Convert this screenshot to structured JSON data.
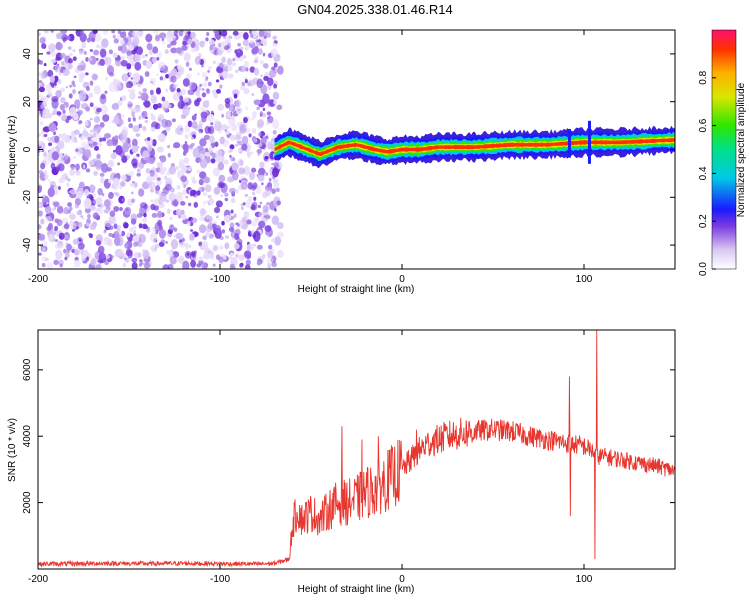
{
  "title": "GN04.2025.338.01.46.R14",
  "chart_data": [
    {
      "type": "heatmap",
      "name": "spectrogram",
      "xlabel": "Height of straight line (km)",
      "ylabel": "Frequency (Hz)",
      "xlim": [
        -200,
        150
      ],
      "ylim": [
        -50,
        50
      ],
      "xticks": [
        -200,
        -100,
        0,
        100
      ],
      "yticks": [
        -40,
        -20,
        0,
        20,
        40
      ],
      "noise_region_x": [
        -200,
        -70
      ],
      "ridge_frequency_hz": [
        {
          "x": -70,
          "f": 0
        },
        {
          "x": -62,
          "f": 3
        },
        {
          "x": -55,
          "f": 1
        },
        {
          "x": -45,
          "f": -2
        },
        {
          "x": -35,
          "f": 1
        },
        {
          "x": -25,
          "f": 2
        },
        {
          "x": -15,
          "f": 0
        },
        {
          "x": -8,
          "f": -1
        },
        {
          "x": 0,
          "f": 0
        },
        {
          "x": 10,
          "f": 0
        },
        {
          "x": 20,
          "f": 1
        },
        {
          "x": 40,
          "f": 1
        },
        {
          "x": 60,
          "f": 2
        },
        {
          "x": 80,
          "f": 2
        },
        {
          "x": 100,
          "f": 3
        },
        {
          "x": 120,
          "f": 3
        },
        {
          "x": 150,
          "f": 4
        }
      ],
      "colorbar": {
        "label": "Normalized spectral amplitude",
        "min": 0.0,
        "max": 1.0,
        "ticks": [
          "0.0",
          "0.2",
          "0.4",
          "0.6",
          "0.8"
        ]
      }
    },
    {
      "type": "line",
      "name": "snr",
      "xlabel": "Height of straight line (km)",
      "ylabel": "SNR (10 * v/v)",
      "xlim": [
        -200,
        150
      ],
      "ylim": [
        0,
        7200
      ],
      "xticks": [
        -200,
        -100,
        0,
        100
      ],
      "yticks": [
        2000,
        4000,
        6000
      ],
      "series": [
        {
          "name": "SNR",
          "color": "#e8362e",
          "x": [
            -200,
            -180,
            -160,
            -140,
            -120,
            -100,
            -80,
            -70,
            -62,
            -60,
            -57,
            -55,
            -50,
            -45,
            -40,
            -35,
            -30,
            -25,
            -20,
            -15,
            -10,
            -5,
            0,
            5,
            10,
            15,
            20,
            25,
            30,
            40,
            50,
            60,
            70,
            80,
            90,
            95,
            100,
            105,
            107,
            110,
            120,
            130,
            140,
            150
          ],
          "values": [
            150,
            160,
            170,
            160,
            170,
            160,
            150,
            170,
            300,
            1400,
            1800,
            1500,
            1700,
            1500,
            1800,
            2000,
            2000,
            2100,
            2300,
            2400,
            2600,
            2800,
            3000,
            3300,
            3600,
            3800,
            3900,
            4000,
            4050,
            4150,
            4200,
            4150,
            4000,
            3900,
            3800,
            3750,
            3700,
            3550,
            3400,
            3400,
            3300,
            3200,
            3100,
            2950
          ]
        }
      ],
      "spikes": [
        {
          "x": -33,
          "y": 4300
        },
        {
          "x": -22,
          "y": 3900
        },
        {
          "x": -13,
          "y": 4000
        },
        {
          "x": 8,
          "y": 4200
        },
        {
          "x": 92,
          "y": 5800
        },
        {
          "x": 92.5,
          "y": 1600
        },
        {
          "x": 107,
          "y": 7200
        },
        {
          "x": 106,
          "y": 300
        }
      ]
    }
  ]
}
